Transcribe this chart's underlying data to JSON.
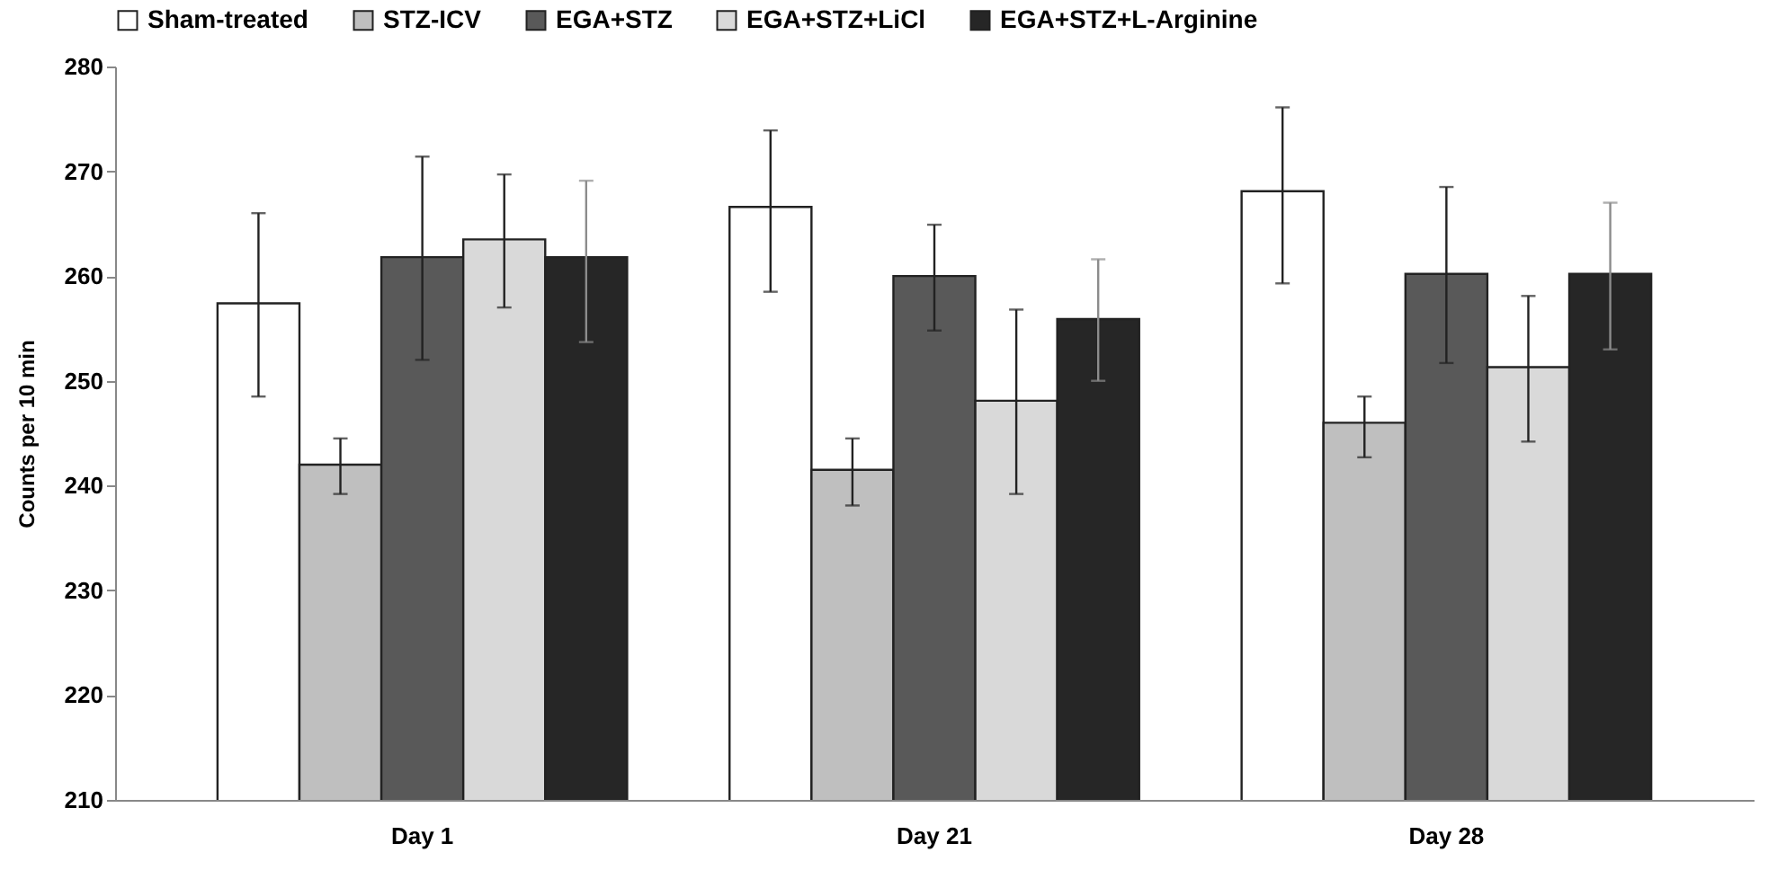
{
  "chart_data": {
    "type": "bar",
    "ylabel": "Counts per 10 min",
    "categories": [
      "Day 1",
      "Day 21",
      "Day 28"
    ],
    "ylim": [
      210,
      280
    ],
    "yticks": [
      210,
      220,
      230,
      240,
      250,
      260,
      270,
      280
    ],
    "grid": false,
    "legend": "top",
    "series": [
      {
        "name": "Sham-treated",
        "color": "#ffffff",
        "values": [
          257.4,
          266.6,
          268.1
        ],
        "errors": [
          [
            248.5,
            266.0
          ],
          [
            258.5,
            273.9
          ],
          [
            259.3,
            276.1
          ]
        ]
      },
      {
        "name": "STZ-ICV",
        "color": "#bfbfbf",
        "values": [
          242.0,
          241.5,
          246.0
        ],
        "errors": [
          [
            239.2,
            244.5
          ],
          [
            238.1,
            244.5
          ],
          [
            242.7,
            248.5
          ]
        ]
      },
      {
        "name": "EGA+STZ",
        "color": "#595959",
        "values": [
          261.8,
          260.0,
          260.2
        ],
        "errors": [
          [
            252.0,
            271.4
          ],
          [
            254.8,
            264.9
          ],
          [
            251.7,
            268.5
          ]
        ]
      },
      {
        "name": "EGA+STZ+LiCl",
        "color": "#d9d9d9",
        "values": [
          263.5,
          248.1,
          251.3
        ],
        "errors": [
          [
            257.0,
            269.7
          ],
          [
            239.2,
            256.8
          ],
          [
            244.2,
            258.1
          ]
        ]
      },
      {
        "name": "EGA+STZ+L-Arginine",
        "color": "#262626",
        "values": [
          261.8,
          255.9,
          260.2
        ],
        "errors": [
          [
            253.7,
            269.1
          ],
          [
            250.0,
            261.6
          ],
          [
            253.0,
            267.0
          ]
        ]
      }
    ]
  }
}
